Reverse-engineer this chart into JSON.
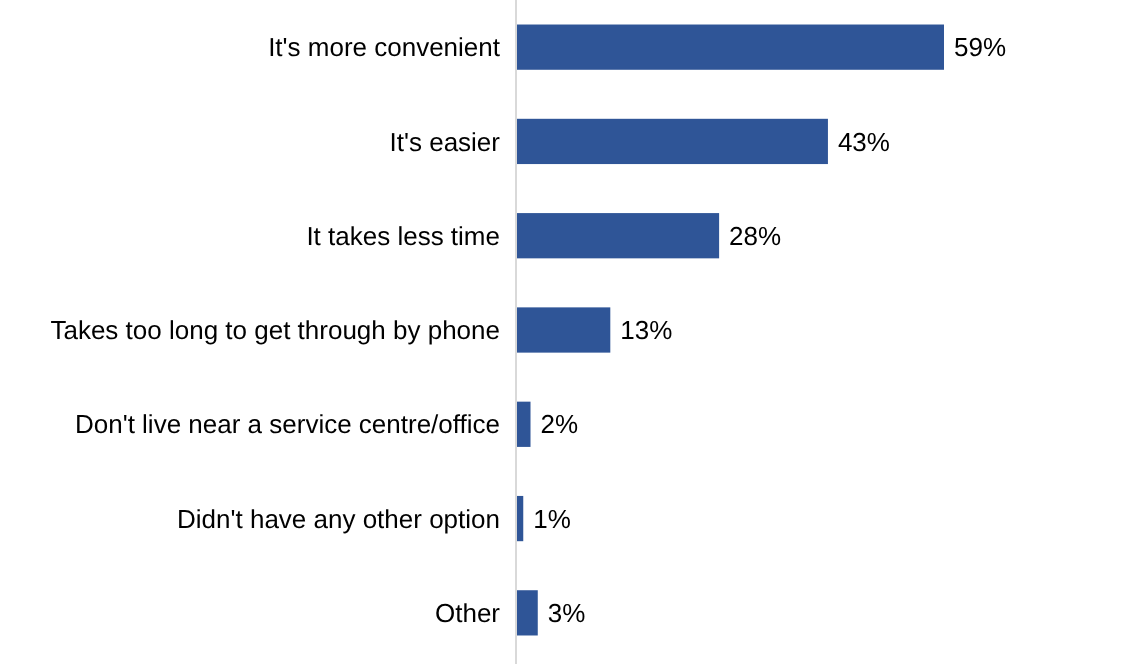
{
  "chart_data": {
    "type": "bar",
    "orientation": "horizontal",
    "categories": [
      "It's more convenient",
      "It's easier",
      "It takes less time",
      "Takes too long to get through by phone",
      "Don't live near a service centre/office",
      "Didn't have any other option",
      "Other"
    ],
    "values": [
      59,
      43,
      28,
      13,
      2,
      1,
      3
    ],
    "value_labels": [
      "59%",
      "43%",
      "28%",
      "13%",
      "2%",
      "1%",
      "3%"
    ],
    "color": "#2f5597"
  }
}
